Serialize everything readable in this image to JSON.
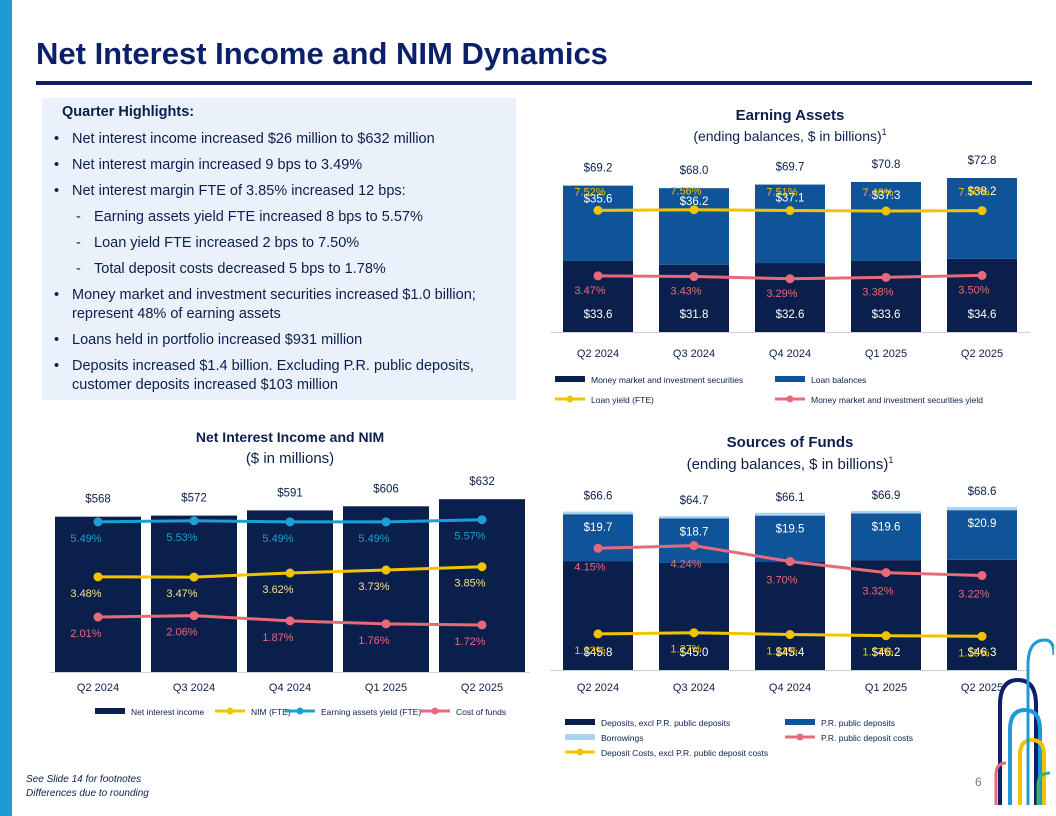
{
  "title": "Net Interest Income and NIM Dynamics",
  "highlights": {
    "heading": "Quarter Highlights:",
    "items": [
      {
        "level": 1,
        "text": "Net interest income increased $26 million to $632 million"
      },
      {
        "level": 1,
        "text": "Net interest margin increased 9 bps to 3.49%"
      },
      {
        "level": 1,
        "text": "Net interest margin FTE of 3.85% increased 12 bps:"
      },
      {
        "level": 2,
        "text": "Earning assets yield FTE increased 8 bps to 5.57%"
      },
      {
        "level": 2,
        "text": "Loan yield FTE increased 2 bps to 7.50%"
      },
      {
        "level": 2,
        "text": "Total deposit costs decreased 5 bps to 1.78%"
      },
      {
        "level": 1,
        "text": "Money market and investment securities increased $1.0 billion; represent 48% of earning assets"
      },
      {
        "level": 1,
        "text": "Loans held in portfolio increased $931 million"
      },
      {
        "level": 1,
        "text": "Deposits increased $1.4 billion. Excluding P.R. public deposits, customer deposits increased $103 million"
      }
    ]
  },
  "footnotes": [
    "See Slide 14 for footnotes",
    "Differences due to rounding"
  ],
  "page_number": "6",
  "colors": {
    "navy": "#0b1f4d",
    "blue": "#0f5499",
    "light_blue": "#a9d3f2",
    "yellow": "#f2c400",
    "pink": "#e86a78",
    "cyan": "#1e9fd4"
  },
  "chart_data": [
    {
      "id": "earning_assets",
      "type": "bar",
      "title": "Earning Assets",
      "subtitle": "(ending balances, $ in billions)",
      "subtitle_sup": "1",
      "categories": [
        "Q2 2024",
        "Q3 2024",
        "Q4 2024",
        "Q1 2025",
        "Q2 2025"
      ],
      "ylim": [
        0,
        78
      ],
      "totals": [
        "$69.2",
        "$68.0",
        "$69.7",
        "$70.8",
        "$72.8"
      ],
      "bars": [
        {
          "name": "Money market and investment securities",
          "color": "#0b1f4d",
          "values": [
            33.6,
            31.8,
            32.6,
            33.6,
            34.6
          ],
          "labels": [
            "$33.6",
            "$31.8",
            "$32.6",
            "$33.6",
            "$34.6"
          ]
        },
        {
          "name": "Loan balances",
          "color": "#0f5499",
          "values": [
            35.6,
            36.2,
            37.1,
            37.3,
            38.2
          ],
          "labels": [
            "$35.6",
            "$36.2",
            "$37.1",
            "$37.3",
            "$38.2"
          ]
        }
      ],
      "lines": [
        {
          "name": "Loan yield (FTE)",
          "color": "#f2c400",
          "label_color": "#f2c400",
          "values": [
            7.52,
            7.56,
            7.51,
            7.48,
            7.5
          ],
          "labels": [
            "7.52%",
            "7.56%",
            "7.51%",
            "7.48%",
            "7.50%"
          ],
          "range": [
            0,
            10.2
          ]
        },
        {
          "name": "Money market and investment securities yield",
          "color": "#e86a78",
          "label_color": "#e86a78",
          "values": [
            3.47,
            3.43,
            3.29,
            3.38,
            3.5
          ],
          "labels": [
            "3.47%",
            "3.43%",
            "3.29%",
            "3.38%",
            "3.50%"
          ],
          "range": [
            0,
            10.2
          ]
        }
      ],
      "legend": [
        {
          "name": "Money market and investment securities",
          "kind": "bar",
          "color": "#0b1f4d"
        },
        {
          "name": "Loan balances",
          "kind": "bar",
          "color": "#0f5499"
        },
        {
          "name": "Loan yield (FTE)",
          "kind": "line",
          "color": "#f2c400"
        },
        {
          "name": "Money market and investment securities yield",
          "kind": "line",
          "color": "#e86a78"
        }
      ]
    },
    {
      "id": "nii_nim",
      "type": "bar",
      "title": "Net Interest Income and NIM",
      "subtitle": "($ in millions)",
      "categories": [
        "Q2 2024",
        "Q3 2024",
        "Q4 2024",
        "Q1 2025",
        "Q2 2025"
      ],
      "ylim": [
        0,
        640
      ],
      "totals": [
        "$568",
        "$572",
        "$591",
        "$606",
        "$632"
      ],
      "bars": [
        {
          "name": "Net interest income",
          "color": "#0b1f4d",
          "values": [
            568,
            572,
            591,
            606,
            632
          ],
          "labels": []
        }
      ],
      "lines": [
        {
          "name": "Earning assets yield (FTE)",
          "color": "#1e9fd4",
          "label_color": "#1e9fd4",
          "values": [
            5.49,
            5.53,
            5.49,
            5.49,
            5.57
          ],
          "labels": [
            "5.49%",
            "5.53%",
            "5.49%",
            "5.49%",
            "5.57%"
          ],
          "range": [
            0,
            6.4
          ]
        },
        {
          "name": "NIM (FTE)",
          "color": "#f2c400",
          "label_color": "#f7e08a",
          "values": [
            3.48,
            3.47,
            3.62,
            3.73,
            3.85
          ],
          "labels": [
            "3.48%",
            "3.47%",
            "3.62%",
            "3.73%",
            "3.85%"
          ],
          "range": [
            0,
            6.4
          ]
        },
        {
          "name": "Cost of funds",
          "color": "#e86a78",
          "label_color": "#e86a78",
          "values": [
            2.01,
            2.06,
            1.87,
            1.76,
            1.72
          ],
          "labels": [
            "2.01%",
            "2.06%",
            "1.87%",
            "1.76%",
            "1.72%"
          ],
          "range": [
            0,
            6.4
          ]
        }
      ],
      "legend": [
        {
          "name": "Net interest income",
          "kind": "bar",
          "color": "#0b1f4d"
        },
        {
          "name": "NIM (FTE)",
          "kind": "line",
          "color": "#f2c400"
        },
        {
          "name": "Earning assets yield (FTE)",
          "kind": "line",
          "color": "#1e9fd4"
        },
        {
          "name": "Cost of funds",
          "kind": "line",
          "color": "#e86a78"
        }
      ]
    },
    {
      "id": "sources_of_funds",
      "type": "bar",
      "title": "Sources of Funds",
      "subtitle": "(ending balances, $ in billions)",
      "subtitle_sup": "1",
      "categories": [
        "Q2 2024",
        "Q3 2024",
        "Q4 2024",
        "Q1 2025",
        "Q2 2025"
      ],
      "ylim": [
        0,
        74
      ],
      "totals": [
        "$66.6",
        "$64.7",
        "$66.1",
        "$66.9",
        "$68.6"
      ],
      "bars": [
        {
          "name": "Deposits, excl P.R. public deposits",
          "color": "#0b1f4d",
          "values": [
            45.8,
            45.0,
            45.4,
            46.2,
            46.3
          ],
          "labels": [
            "$45.8",
            "$45.0",
            "$45.4",
            "$46.2",
            "$46.3"
          ]
        },
        {
          "name": "P.R. public deposits",
          "color": "#0f5499",
          "values": [
            19.7,
            18.7,
            19.5,
            19.6,
            20.9
          ],
          "labels": [
            "$19.7",
            "$18.7",
            "$19.5",
            "$19.6",
            "$20.9"
          ]
        },
        {
          "name": "Borrowings",
          "color": "#a9d3f2",
          "values": [
            1.1,
            1.0,
            1.2,
            1.1,
            1.4
          ],
          "labels": []
        }
      ],
      "lines": [
        {
          "name": "P.R. public deposit costs",
          "color": "#e86a78",
          "label_color": "#e86a78",
          "values": [
            4.15,
            4.24,
            3.7,
            3.32,
            3.22
          ],
          "labels": [
            "4.15%",
            "4.24%",
            "3.70%",
            "3.32%",
            "3.22%"
          ],
          "range": [
            0,
            6.0
          ]
        },
        {
          "name": "Deposit Costs, excl P.R. public deposit costs",
          "color": "#f2c400",
          "label_color": "#f2c400",
          "values": [
            1.23,
            1.27,
            1.21,
            1.17,
            1.15
          ],
          "labels": [
            "1.23%",
            "1.27%",
            "1.21%",
            "1.17%",
            "1.15%"
          ],
          "range": [
            0,
            6.0
          ]
        }
      ],
      "legend": [
        {
          "name": "Deposits, excl P.R. public deposits",
          "kind": "bar",
          "color": "#0b1f4d"
        },
        {
          "name": "P.R. public deposits",
          "kind": "bar",
          "color": "#0f5499"
        },
        {
          "name": "Borrowings",
          "kind": "bar",
          "color": "#a9d3f2"
        },
        {
          "name": "P.R. public deposit costs",
          "kind": "line",
          "color": "#e86a78"
        },
        {
          "name": "Deposit Costs, excl P.R. public deposit costs",
          "kind": "line",
          "color": "#f2c400"
        }
      ]
    }
  ]
}
